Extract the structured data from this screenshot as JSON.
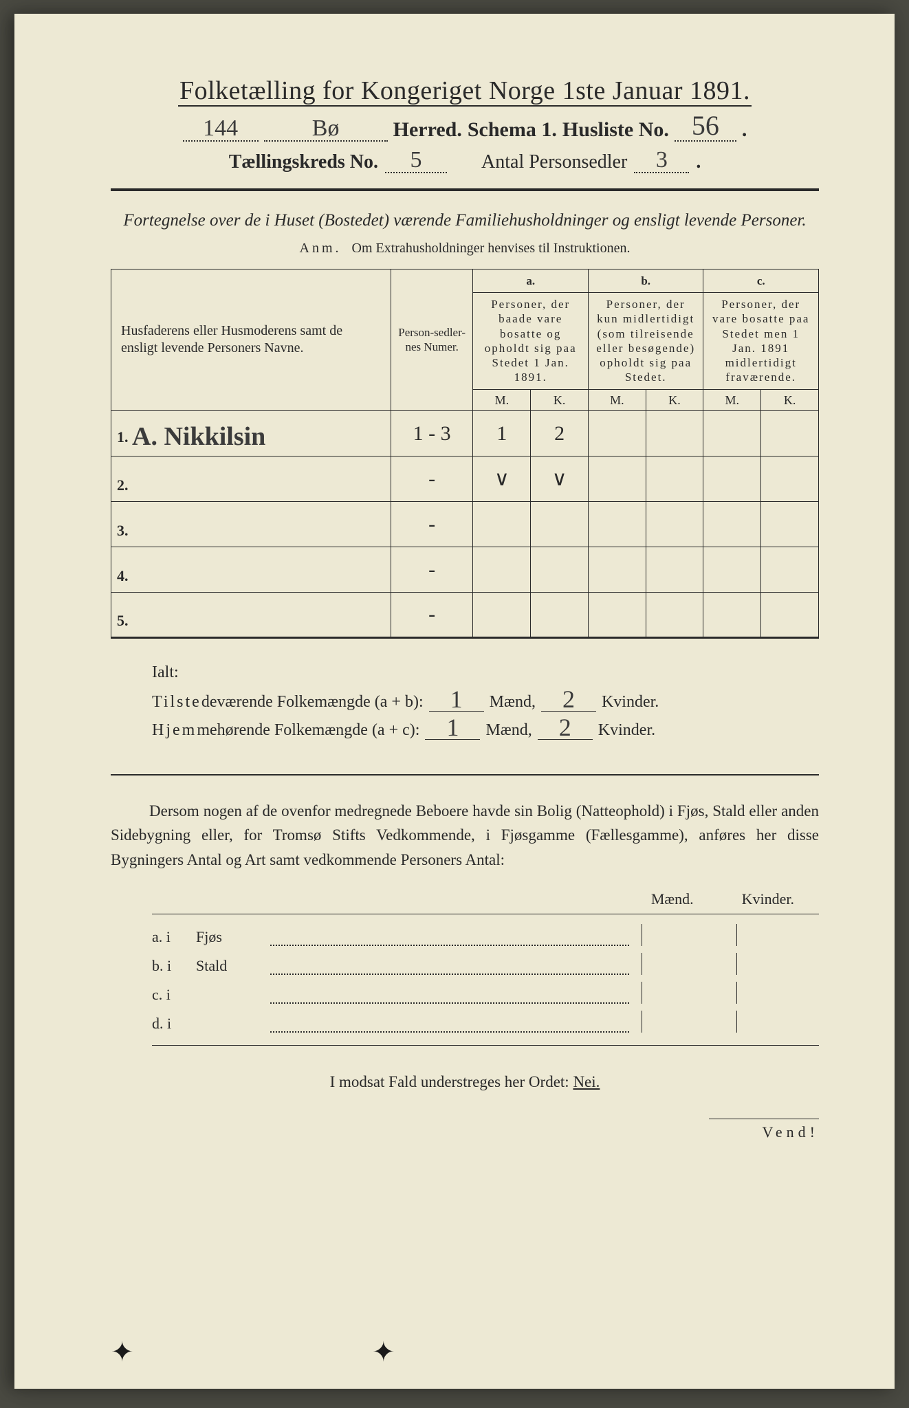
{
  "colors": {
    "paper": "#ede9d4",
    "ink": "#2a2a2a",
    "outer": "#4a4a42",
    "handwriting": "#3b3b3b"
  },
  "typography": {
    "title_fontsize_pt": 28,
    "body_fontsize_pt": 17,
    "handwriting_family": "Brush Script MT"
  },
  "title": {
    "main": "Folketælling for Kongeriget Norge 1ste Januar 1891."
  },
  "line2": {
    "prefix_value": "144",
    "name_value": "Bø",
    "herred": "Herred.",
    "schema": "Schema 1.",
    "husliste_label": "Husliste No.",
    "husliste_value": "56"
  },
  "line3": {
    "kreds_label": "Tællingskreds No.",
    "kreds_value": "5",
    "antal_label": "Antal Personsedler",
    "antal_value": "3"
  },
  "subtitle": "Fortegnelse over de i Huset (Bostedet) værende Familiehusholdninger og ensligt levende Personer.",
  "anm": {
    "label": "Anm.",
    "text": "Om Extrahusholdninger henvises til Instruktionen."
  },
  "table": {
    "col_name": "Husfaderens eller Husmoderens samt de ensligt levende Personers Navne.",
    "col_numer": "Person-sedler-nes Numer.",
    "col_a_tag": "a.",
    "col_a": "Personer, der baade vare bosatte og opholdt sig paa Stedet 1 Jan. 1891.",
    "col_b_tag": "b.",
    "col_b": "Personer, der kun midlertidigt (som tilreisende eller besøgende) opholdt sig paa Stedet.",
    "col_c_tag": "c.",
    "col_c": "Personer, der vare bosatte paa Stedet men 1 Jan. 1891 midlertidigt fraværende.",
    "M": "M.",
    "K": "K.",
    "rows": [
      {
        "n": "1.",
        "name": "A. Nikkilsin",
        "numer": "1 - 3",
        "aM": "1",
        "aK": "2",
        "bM": "",
        "bK": "",
        "cM": "",
        "cK": ""
      },
      {
        "n": "2.",
        "name": "",
        "numer": "-",
        "aM": "∨",
        "aK": "∨",
        "bM": "",
        "bK": "",
        "cM": "",
        "cK": ""
      },
      {
        "n": "3.",
        "name": "",
        "numer": "-",
        "aM": "",
        "aK": "",
        "bM": "",
        "bK": "",
        "cM": "",
        "cK": ""
      },
      {
        "n": "4.",
        "name": "",
        "numer": "-",
        "aM": "",
        "aK": "",
        "bM": "",
        "bK": "",
        "cM": "",
        "cK": ""
      },
      {
        "n": "5.",
        "name": "",
        "numer": "-",
        "aM": "",
        "aK": "",
        "bM": "",
        "bK": "",
        "cM": "",
        "cK": ""
      }
    ]
  },
  "totals": {
    "ialt": "Ialt:",
    "row1_label": "Tilstedeværende Folkemængde (a + b):",
    "row2_label": "Hjemmehørende Folkemængde (a + c):",
    "maend": "Mænd,",
    "kvinder": "Kvinder.",
    "r1_m": "1",
    "r1_k": "2",
    "r2_m": "1",
    "r2_k": "2"
  },
  "para": "Dersom nogen af de ovenfor medregnede Beboere havde sin Bolig (Natteophold) i Fjøs, Stald eller anden Sidebygning eller, for Tromsø Stifts Vedkommende, i Fjøsgamme (Fællesgamme), anføres her disse Bygningers Antal og Art samt vedkommende Personers Antal:",
  "mk": {
    "m": "Mænd.",
    "k": "Kvinder."
  },
  "buildings": {
    "rows": [
      {
        "lbl": "a.  i",
        "txt": "Fjøs"
      },
      {
        "lbl": "b.  i",
        "txt": "Stald"
      },
      {
        "lbl": "c.  i",
        "txt": ""
      },
      {
        "lbl": "d.  i",
        "txt": ""
      }
    ]
  },
  "nei": {
    "pre": "I modsat Fald understreges her Ordet: ",
    "word": "Nei."
  },
  "vend": "Vend!"
}
